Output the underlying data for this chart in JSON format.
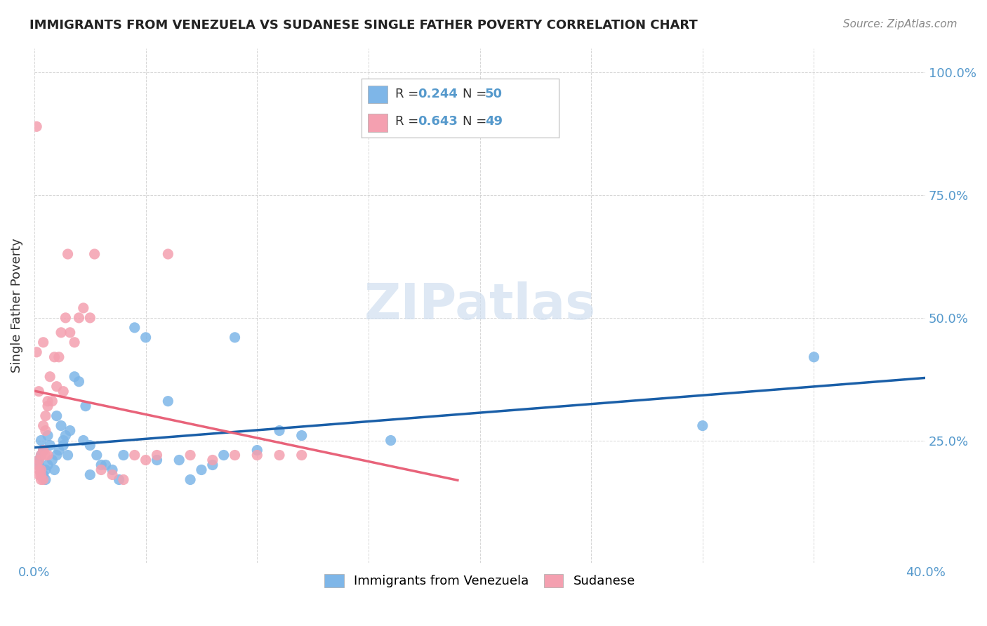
{
  "title": "IMMIGRANTS FROM VENEZUELA VS SUDANESE SINGLE FATHER POVERTY CORRELATION CHART",
  "source": "Source: ZipAtlas.com",
  "ylabel": "Single Father Poverty",
  "xlim": [
    0.0,
    0.4
  ],
  "ylim": [
    0.0,
    1.05
  ],
  "legend_r1": "0.244",
  "legend_n1": "50",
  "legend_r2": "0.643",
  "legend_n2": "49",
  "blue_color": "#7EB6E8",
  "pink_color": "#F4A0B0",
  "blue_line_color": "#1A5FA8",
  "pink_line_color": "#E8637A",
  "tick_color": "#5599cc",
  "watermark": "ZIPatlas",
  "venezuela_x": [
    0.002,
    0.003,
    0.004,
    0.002,
    0.003,
    0.005,
    0.004,
    0.006,
    0.007,
    0.005,
    0.008,
    0.009,
    0.006,
    0.01,
    0.012,
    0.011,
    0.013,
    0.014,
    0.01,
    0.015,
    0.013,
    0.016,
    0.018,
    0.02,
    0.022,
    0.025,
    0.023,
    0.028,
    0.03,
    0.025,
    0.032,
    0.035,
    0.038,
    0.04,
    0.045,
    0.05,
    0.055,
    0.06,
    0.065,
    0.07,
    0.075,
    0.08,
    0.085,
    0.09,
    0.1,
    0.11,
    0.12,
    0.16,
    0.3,
    0.35
  ],
  "venezuela_y": [
    0.2,
    0.22,
    0.18,
    0.21,
    0.25,
    0.19,
    0.23,
    0.2,
    0.24,
    0.17,
    0.21,
    0.19,
    0.26,
    0.22,
    0.28,
    0.23,
    0.24,
    0.26,
    0.3,
    0.22,
    0.25,
    0.27,
    0.38,
    0.37,
    0.25,
    0.24,
    0.32,
    0.22,
    0.2,
    0.18,
    0.2,
    0.19,
    0.17,
    0.22,
    0.48,
    0.46,
    0.21,
    0.33,
    0.21,
    0.17,
    0.19,
    0.2,
    0.22,
    0.46,
    0.23,
    0.27,
    0.26,
    0.25,
    0.28,
    0.42
  ],
  "sudanese_x": [
    0.001,
    0.002,
    0.002,
    0.003,
    0.003,
    0.001,
    0.004,
    0.002,
    0.003,
    0.004,
    0.005,
    0.004,
    0.006,
    0.005,
    0.007,
    0.006,
    0.008,
    0.009,
    0.01,
    0.011,
    0.012,
    0.013,
    0.015,
    0.014,
    0.016,
    0.018,
    0.02,
    0.022,
    0.025,
    0.027,
    0.03,
    0.035,
    0.04,
    0.045,
    0.05,
    0.055,
    0.06,
    0.07,
    0.08,
    0.09,
    0.1,
    0.11,
    0.12,
    0.002,
    0.003,
    0.004,
    0.001,
    0.005,
    0.006
  ],
  "sudanese_y": [
    0.2,
    0.21,
    0.18,
    0.22,
    0.19,
    0.43,
    0.23,
    0.35,
    0.17,
    0.28,
    0.3,
    0.45,
    0.32,
    0.27,
    0.38,
    0.33,
    0.33,
    0.42,
    0.36,
    0.42,
    0.47,
    0.35,
    0.63,
    0.5,
    0.47,
    0.45,
    0.5,
    0.52,
    0.5,
    0.63,
    0.19,
    0.18,
    0.17,
    0.22,
    0.21,
    0.22,
    0.63,
    0.22,
    0.21,
    0.22,
    0.22,
    0.22,
    0.22,
    0.19,
    0.18,
    0.17,
    0.89,
    0.22,
    0.22
  ]
}
